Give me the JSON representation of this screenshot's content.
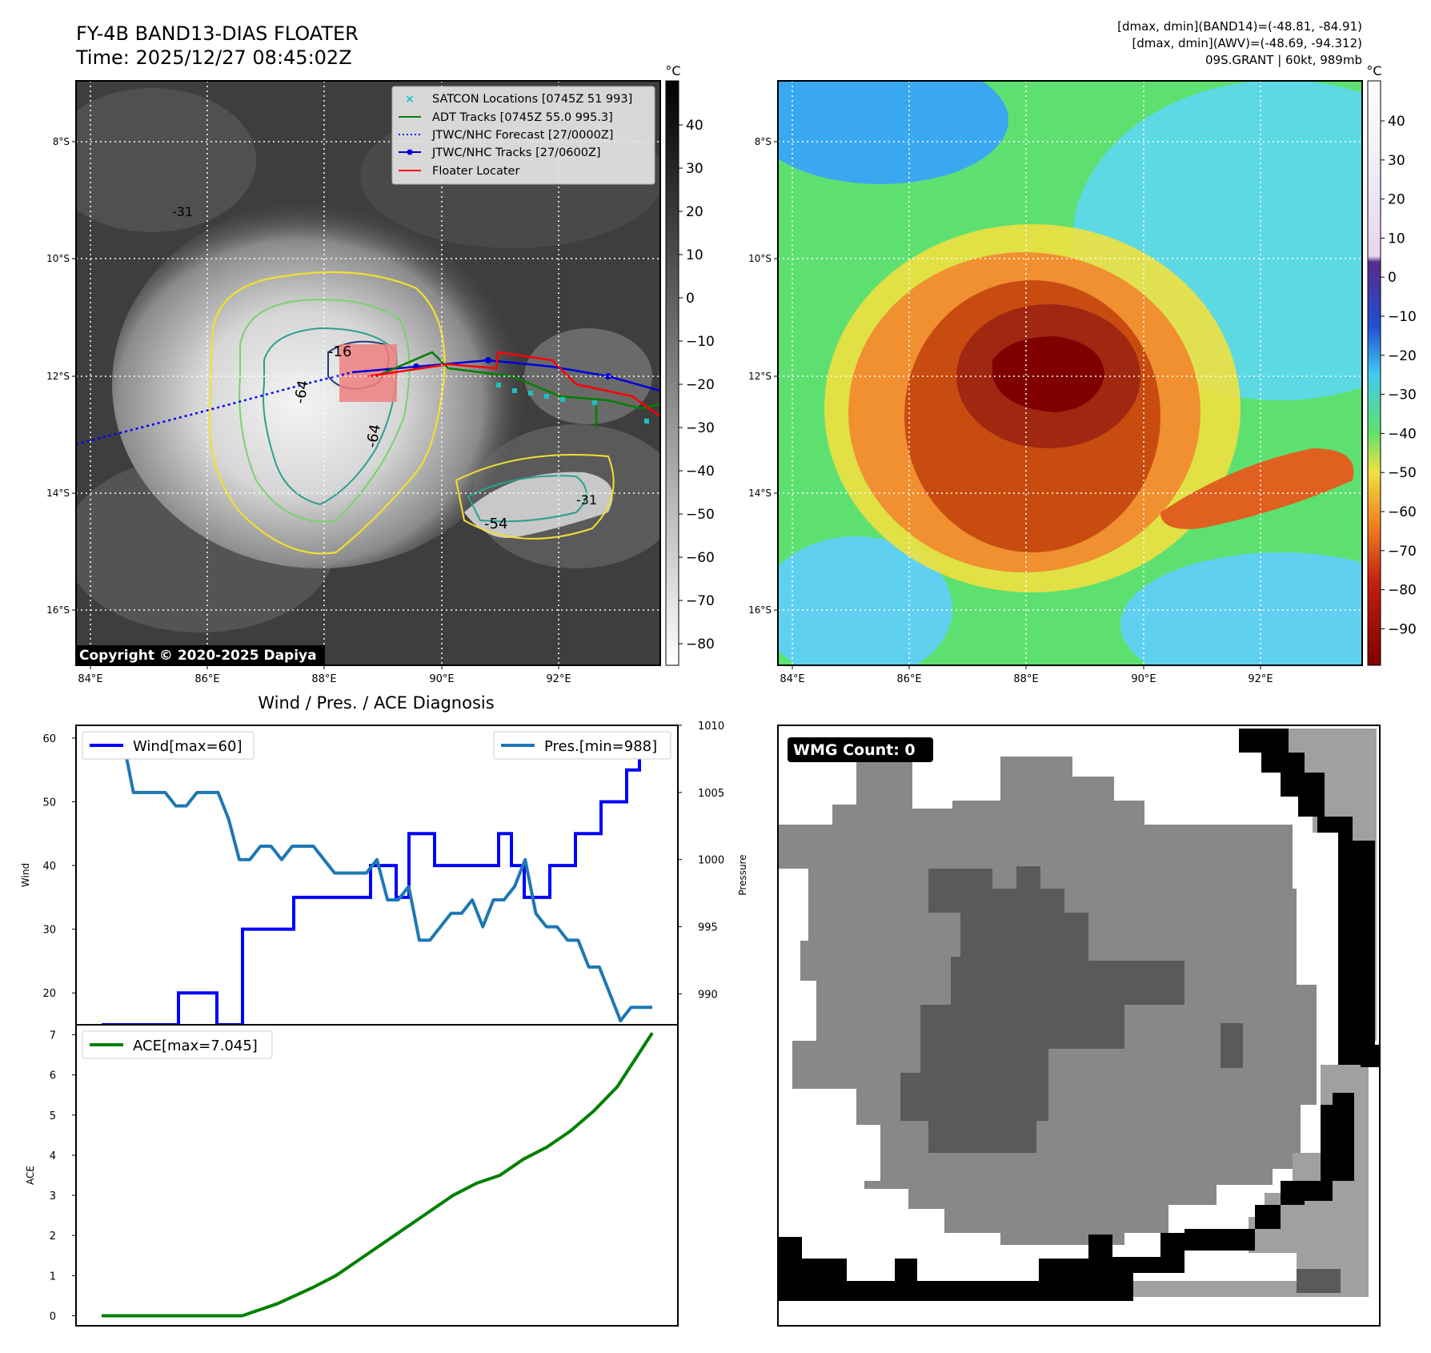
{
  "header": {
    "title_line1": "FY-4B BAND13-DIAS FLOATER",
    "title_line2": "Time: 2025/12/27 08:45:02Z",
    "info_line1": "[dmax, dmin](BAND14)=(-48.81, -84.91)",
    "info_line2": "[dmax, dmin](AWV)=(-48.69, -94.312)",
    "info_line3": "09S.GRANT | 60kt, 989mb"
  },
  "map": {
    "lat_ticks": [
      "8°S",
      "10°S",
      "12°S",
      "14°S",
      "16°S"
    ],
    "lon_ticks": [
      "84°E",
      "86°E",
      "88°E",
      "90°E",
      "92°E"
    ],
    "copyright": "Copyright © 2020-2025 Dapiya",
    "contour_labels": [
      "-16",
      "-64",
      "-64",
      "-54",
      "-31",
      "-31"
    ],
    "legend": [
      {
        "label": "SATCON Locations [0745Z 51 993]",
        "color": "#20c0c0"
      },
      {
        "label": "ADT Tracks [0745Z 55.0 995.3]",
        "color": "#008000"
      },
      {
        "label": "JTWC/NHC Forecast [27/0000Z]",
        "color": "#0000ff"
      },
      {
        "label": "JTWC/NHC Tracks [27/0600Z]",
        "color": "#0000cc"
      },
      {
        "label": "Floater Locater",
        "color": "#ff0000"
      }
    ]
  },
  "colorbar_gray": {
    "unit": "°C",
    "ticks": [
      "40",
      "30",
      "20",
      "10",
      "0",
      "−10",
      "−20",
      "−30",
      "−40",
      "−50",
      "−60",
      "−70",
      "−80"
    ]
  },
  "colorbar_color": {
    "unit": "°C",
    "ticks": [
      "40",
      "30",
      "20",
      "10",
      "0",
      "−10",
      "−20",
      "−30",
      "−40",
      "−50",
      "−60",
      "−70",
      "−80",
      "−90"
    ]
  },
  "chart_data": [
    {
      "type": "line",
      "title": "Wind / Pres. / ACE Diagnosis",
      "ylabel": "Wind",
      "y2label": "Pressure",
      "ylim": [
        15,
        62
      ],
      "y2lim": [
        987.7,
        1010
      ],
      "yticks": [
        "20",
        "30",
        "40",
        "50",
        "60"
      ],
      "y2ticks": [
        "990",
        "995",
        "1000",
        "1005",
        "1010"
      ],
      "series": [
        {
          "name": "Wind[max=60]",
          "color": "#0000ff",
          "values": [
            15,
            15,
            15,
            15,
            15,
            15,
            20,
            20,
            20,
            15,
            15,
            30,
            30,
            30,
            30,
            35,
            35,
            35,
            35,
            35,
            35,
            40,
            40,
            35,
            45,
            45,
            40,
            40,
            40,
            40,
            40,
            45,
            40,
            35,
            35,
            40,
            40,
            45,
            45,
            50,
            50,
            55,
            60,
            60
          ]
        },
        {
          "name": "Pres.[min=988]",
          "color": "#1f77b4",
          "values": [
            1009,
            1009,
            1009,
            1005,
            1005,
            1005,
            1005,
            1004,
            1004,
            1005,
            1005,
            1005,
            1003,
            1000,
            1000,
            1001,
            1001,
            1000,
            1001,
            1001,
            1001,
            1000,
            999,
            999,
            999,
            999,
            1000,
            997,
            997,
            998,
            994,
            994,
            995,
            996,
            996,
            997,
            995,
            997,
            997,
            998,
            1000,
            996,
            995,
            995,
            994,
            994,
            992,
            992,
            990,
            988,
            989,
            989,
            989
          ]
        }
      ]
    },
    {
      "type": "line",
      "ylabel": "ACE",
      "ylim": [
        -0.25,
        7.25
      ],
      "yticks": [
        "0",
        "1",
        "2",
        "3",
        "4",
        "5",
        "6",
        "7"
      ],
      "series": [
        {
          "name": "ACE[max=7.045]",
          "color": "#008000",
          "x": [
            0,
            4,
            8,
            11,
            12,
            15,
            18,
            20,
            22,
            25,
            28,
            30,
            32,
            34,
            36,
            38,
            40,
            42,
            44,
            47
          ],
          "values": [
            0,
            0,
            0,
            0,
            0,
            0.3,
            0.7,
            1.0,
            1.4,
            2.0,
            2.6,
            3.0,
            3.3,
            3.5,
            3.9,
            4.2,
            4.6,
            5.1,
            5.7,
            7.045
          ]
        }
      ]
    }
  ],
  "wmg": {
    "label": "WMG Count: 0"
  }
}
